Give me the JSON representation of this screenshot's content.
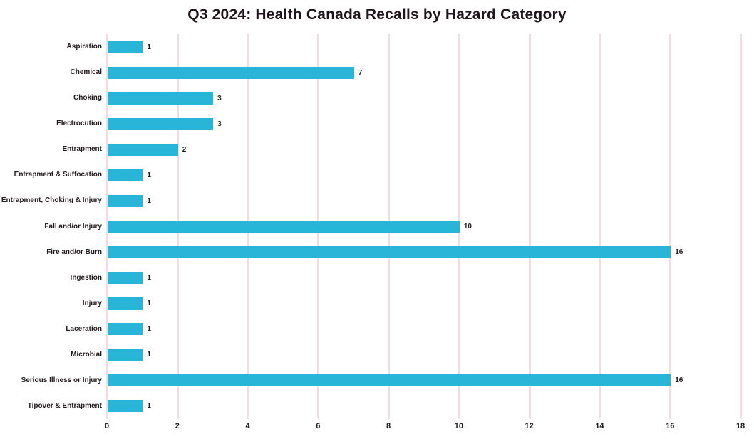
{
  "chart_data": {
    "type": "bar",
    "orientation": "horizontal",
    "title": "Q3 2024: Health Canada Recalls by Hazard Category",
    "categories": [
      "Aspiration",
      "Chemical",
      "Choking",
      "Electrocution",
      "Entrapment",
      "Entrapment & Suffocation",
      "Entrapment, Choking & Injury",
      "Fall and/or Injury",
      "Fire and/or Burn",
      "Ingestion",
      "Injury",
      "Laceration",
      "Microbial",
      "Serious Illness or Injury",
      "Tipover & Entrapment"
    ],
    "values": [
      1,
      7,
      3,
      3,
      2,
      1,
      1,
      10,
      16,
      1,
      1,
      1,
      1,
      16,
      1
    ],
    "xlabel": "",
    "ylabel": "",
    "xlim": [
      0,
      18
    ],
    "xticks": [
      0,
      2,
      4,
      6,
      8,
      10,
      12,
      14,
      16,
      18
    ],
    "data_labels": true,
    "legend": "none",
    "gridlines": "vertical",
    "colors": {
      "bar": "#29b5d8",
      "gridline": "#efdfe4",
      "text": "#231a1f",
      "background": "#ffffff"
    }
  }
}
